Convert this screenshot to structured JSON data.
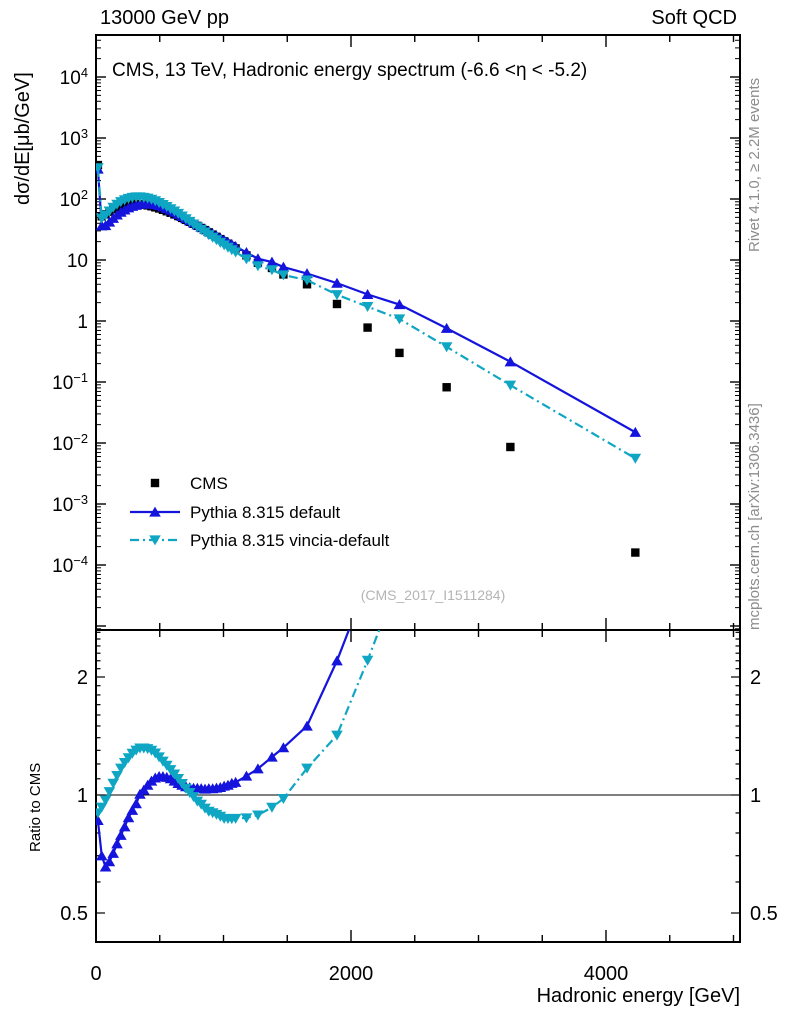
{
  "header": {
    "left": "13000 GeV pp",
    "right": "Soft QCD"
  },
  "plot_title": "CMS, 13 TeV, Hadronic energy spectrum (-6.6 <η < -5.2)",
  "watermark": "(CMS_2017_I1511284)",
  "side_notes": {
    "top": "Rivet 4.1.0, ≥ 2.2M events",
    "bottom": "mcplots.cern.ch [arXiv:1306.3436]"
  },
  "legend": [
    {
      "label": "CMS",
      "marker": "square",
      "line": "none",
      "color": "#000000"
    },
    {
      "label": "Pythia 8.315 default",
      "marker": "triangle-up",
      "line": "solid",
      "color": "#1414dc"
    },
    {
      "label": "Pythia 8.315 vincia-default",
      "marker": "triangle-down",
      "line": "dashdot",
      "color": "#0fa6c4"
    }
  ],
  "chart_data": {
    "type": "line",
    "title": "CMS, 13 TeV, Hadronic energy spectrum (-6.6 <η < -5.2)",
    "xlabel": "Hadronic energy [GeV]",
    "ylabel": "dσ/dE[μb/GeV]",
    "ratio_ylabel": "Ratio to CMS",
    "x_range": [
      0,
      5050
    ],
    "y_scale": "log",
    "ratio_scale": "log",
    "x_major_ticks": [
      {
        "v": 0,
        "label": "0"
      },
      {
        "v": 2000,
        "label": "2000"
      },
      {
        "v": 4000,
        "label": "4000"
      }
    ],
    "x_minor_step": 500,
    "y_ticks": [
      {
        "v": 10000,
        "label": "10^4"
      },
      {
        "v": 1000,
        "label": "10^3"
      },
      {
        "v": 100,
        "label": "10^2"
      },
      {
        "v": 10,
        "label": "10"
      },
      {
        "v": 1,
        "label": "1"
      },
      {
        "v": 0.1,
        "label": "10^−1"
      },
      {
        "v": 0.01,
        "label": "10^−2"
      },
      {
        "v": 0.001,
        "label": "10^−3"
      },
      {
        "v": 0.0001,
        "label": "10^−4"
      }
    ],
    "ratio_ticks": [
      {
        "v": 2,
        "label": "2"
      },
      {
        "v": 1,
        "label": "1"
      },
      {
        "v": 0.5,
        "label": "0.5"
      }
    ],
    "x": [
      15,
      45,
      75,
      105,
      135,
      165,
      195,
      225,
      255,
      285,
      315,
      345,
      375,
      405,
      435,
      465,
      495,
      525,
      555,
      585,
      615,
      645,
      675,
      705,
      735,
      765,
      795,
      825,
      855,
      885,
      915,
      945,
      975,
      1005,
      1035,
      1065,
      1095,
      1180,
      1270,
      1380,
      1470,
      1655,
      1890,
      2130,
      2380,
      2750,
      3250,
      4230
    ],
    "series": [
      {
        "name": "CMS",
        "values": [
          360,
          52,
          56,
          62,
          68,
          73,
          77,
          80,
          82,
          83,
          83,
          82,
          80.5,
          78.5,
          76,
          73,
          70,
          66.5,
          63,
          59.5,
          56,
          52.5,
          49,
          45.5,
          42.3,
          39.2,
          36.3,
          33.5,
          30.9,
          28.4,
          26.1,
          24,
          22,
          20.2,
          18.5,
          16.9,
          15.5,
          11.9,
          9,
          7.4,
          5.8,
          4,
          1.9,
          0.78,
          0.3,
          0.082,
          0.0086,
          0.00016
        ]
      },
      {
        "name": "Pythia 8.315 default",
        "values": [
          310,
          36.4,
          36.7,
          41.9,
          48.3,
          54.8,
          60.8,
          66.4,
          71.8,
          75.9,
          78.9,
          82.4,
          82.9,
          83.2,
          82.5,
          80.7,
          78.1,
          74.1,
          69.9,
          65.5,
          60.8,
          56.2,
          51.9,
          47.8,
          44.2,
          40.8,
          37.8,
          34.8,
          32,
          29.5,
          27.1,
          25,
          23,
          21.3,
          19.6,
          18.1,
          16.7,
          13.3,
          10.5,
          9.25,
          7.66,
          6,
          4.18,
          2.73,
          1.86,
          0.76,
          0.215,
          0.015
        ]
      },
      {
        "name": "Pythia 8.315 vincia-default",
        "values": [
          324,
          48.4,
          54.3,
          63.2,
          72.8,
          81.8,
          90.1,
          96.8,
          102,
          106,
          108,
          108,
          106,
          103,
          98.8,
          93.4,
          87.5,
          81.1,
          75,
          69,
          63.3,
          57.8,
          52.4,
          47.3,
          42.9,
          38.8,
          35,
          31.7,
          28.6,
          25.8,
          23.5,
          21.4,
          19.4,
          17.6,
          16.1,
          14.7,
          13.5,
          10.4,
          8,
          6.88,
          5.68,
          4.68,
          2.7,
          1.72,
          1.08,
          0.377,
          0.0886,
          0.0056
        ]
      }
    ],
    "ratio_reference": 1
  }
}
